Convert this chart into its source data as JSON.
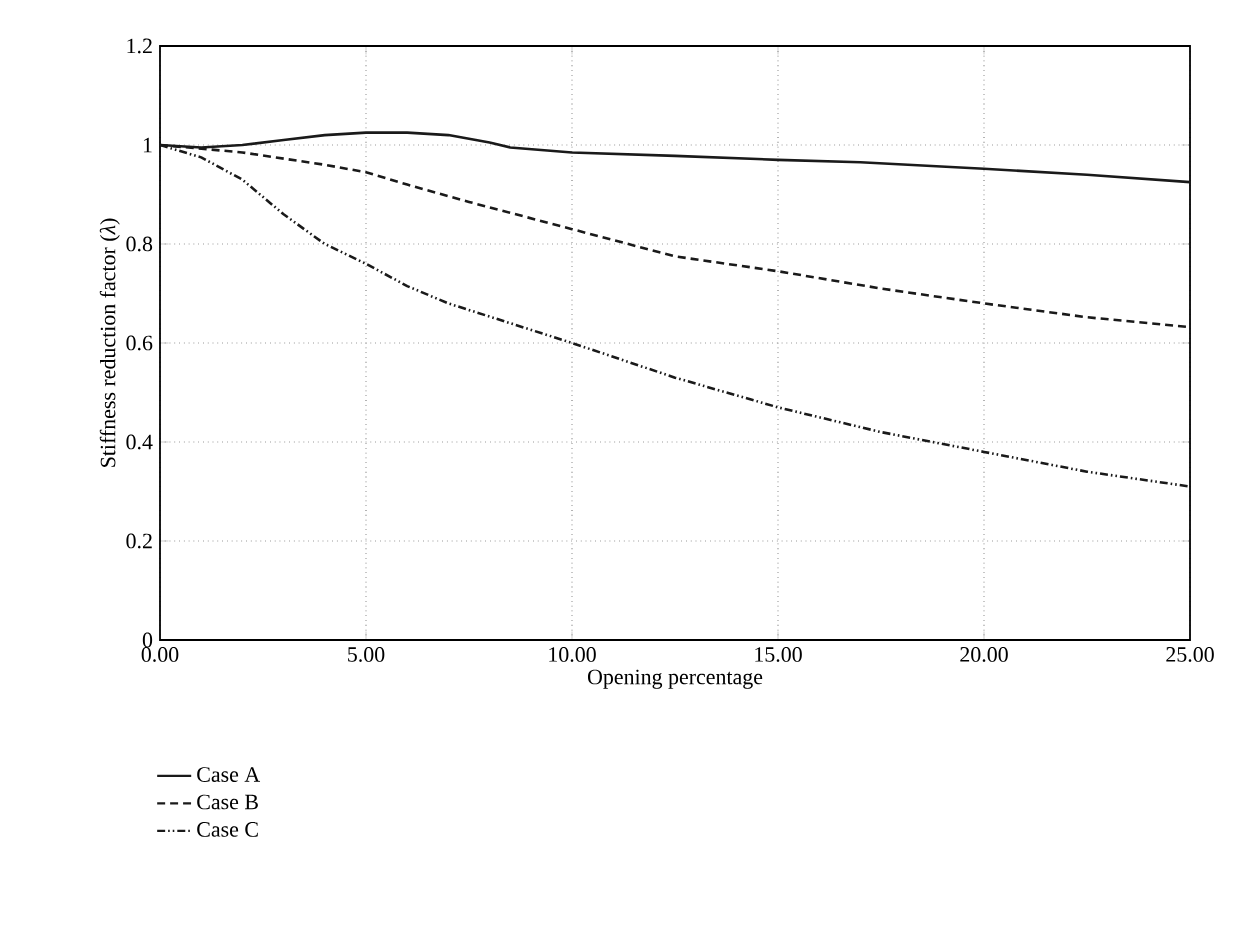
{
  "chart_data": {
    "type": "line",
    "xlabel": "Opening percentage",
    "ylabel": "Stiffness reduction factor (*λ*)",
    "xlim": [
      0,
      25
    ],
    "ylim": [
      0,
      1.2
    ],
    "xticks": [
      {
        "value": 0,
        "label": "0.00"
      },
      {
        "value": 5,
        "label": "5.00"
      },
      {
        "value": 10,
        "label": "10.00"
      },
      {
        "value": 15,
        "label": "15.00"
      },
      {
        "value": 20,
        "label": "20.00"
      },
      {
        "value": 25,
        "label": "25.00"
      }
    ],
    "yticks": [
      0,
      0.2,
      0.4,
      0.6,
      0.8,
      1,
      1.2
    ],
    "grid": true,
    "legend": "bottom left",
    "series": [
      {
        "name": "Case A",
        "color": "#1a1a1a",
        "line_style": "solid",
        "x": [
          0,
          1,
          2,
          3,
          4,
          5,
          6,
          7,
          8,
          8.5,
          10,
          12.5,
          15,
          17,
          20,
          22.5,
          25
        ],
        "values": [
          1,
          0.995,
          1,
          1.01,
          1.02,
          1.025,
          1.025,
          1.02,
          1.005,
          0.995,
          0.985,
          0.978,
          0.97,
          0.965,
          0.952,
          0.94,
          0.925
        ]
      },
      {
        "name": "Case B",
        "color": "#1a1a1a",
        "line_style": "dashed",
        "x": [
          0,
          2,
          4,
          5,
          6,
          7.5,
          10,
          12.5,
          15,
          17.5,
          20,
          22.5,
          25
        ],
        "values": [
          1,
          0.985,
          0.96,
          0.945,
          0.92,
          0.885,
          0.83,
          0.775,
          0.745,
          0.71,
          0.68,
          0.652,
          0.632
        ]
      },
      {
        "name": "Case C",
        "color": "#1a1a1a",
        "line_style": "dashdotdotted",
        "x": [
          0,
          1,
          2,
          3,
          4,
          5,
          6,
          7,
          8.5,
          10,
          12.5,
          15,
          17.5,
          20,
          22.5,
          25
        ],
        "values": [
          1,
          0.975,
          0.93,
          0.86,
          0.8,
          0.76,
          0.715,
          0.68,
          0.64,
          0.6,
          0.53,
          0.47,
          0.42,
          0.38,
          0.34,
          0.31
        ]
      }
    ]
  }
}
